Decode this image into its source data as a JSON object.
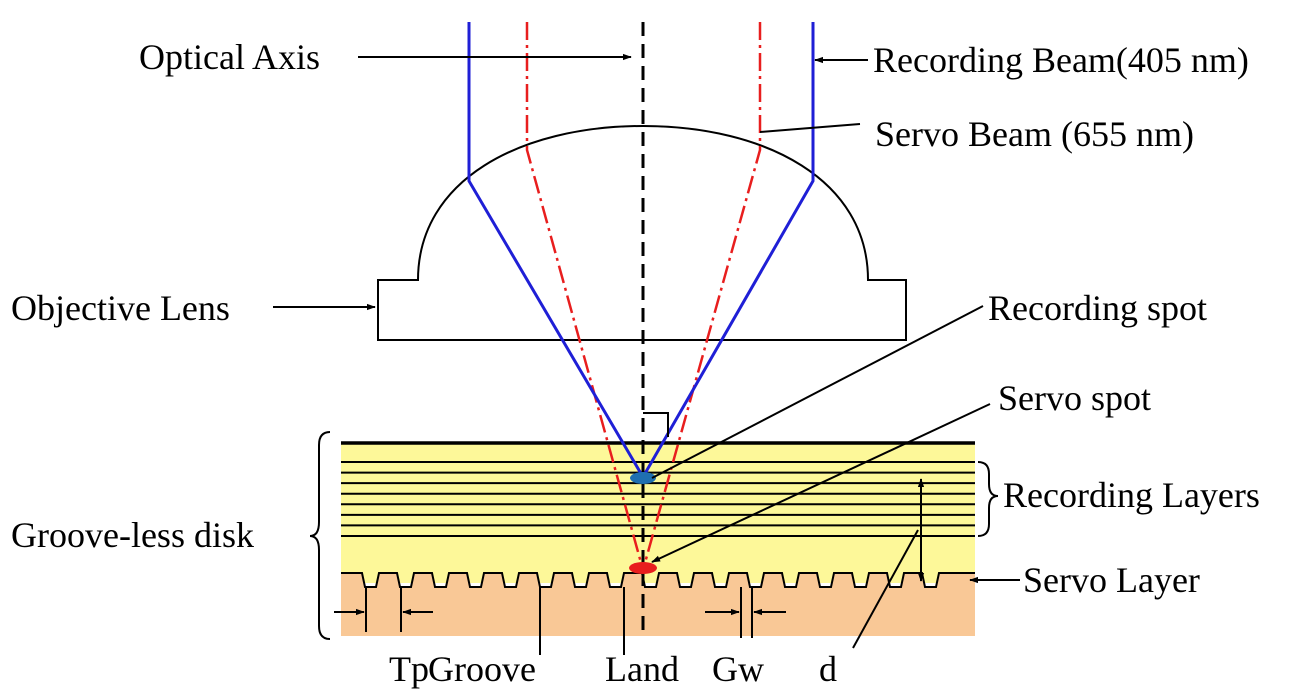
{
  "labels": {
    "optical_axis": "Optical Axis",
    "recording_beam": "Recording Beam(405 nm)",
    "servo_beam": "Servo Beam (655 nm)",
    "objective_lens": "Objective Lens",
    "recording_spot": "Recording spot",
    "servo_spot": "Servo spot",
    "recording_layers": "Recording Layers",
    "groove_less_disk": "Groove-less disk",
    "servo_layer": "Servo Layer",
    "tp": "Tp",
    "groove": "Groove",
    "land": "Land",
    "gw": "Gw",
    "d": "d"
  },
  "colors": {
    "recording_beam": "#1f1fd6",
    "servo_beam": "#e81e1e",
    "recording_layer_fill": "#fdf899",
    "servo_substrate_fill": "#f9c896",
    "recording_spot": "#1f6fb0",
    "servo_spot": "#e81e1e"
  },
  "recording_layers_count": 8
}
